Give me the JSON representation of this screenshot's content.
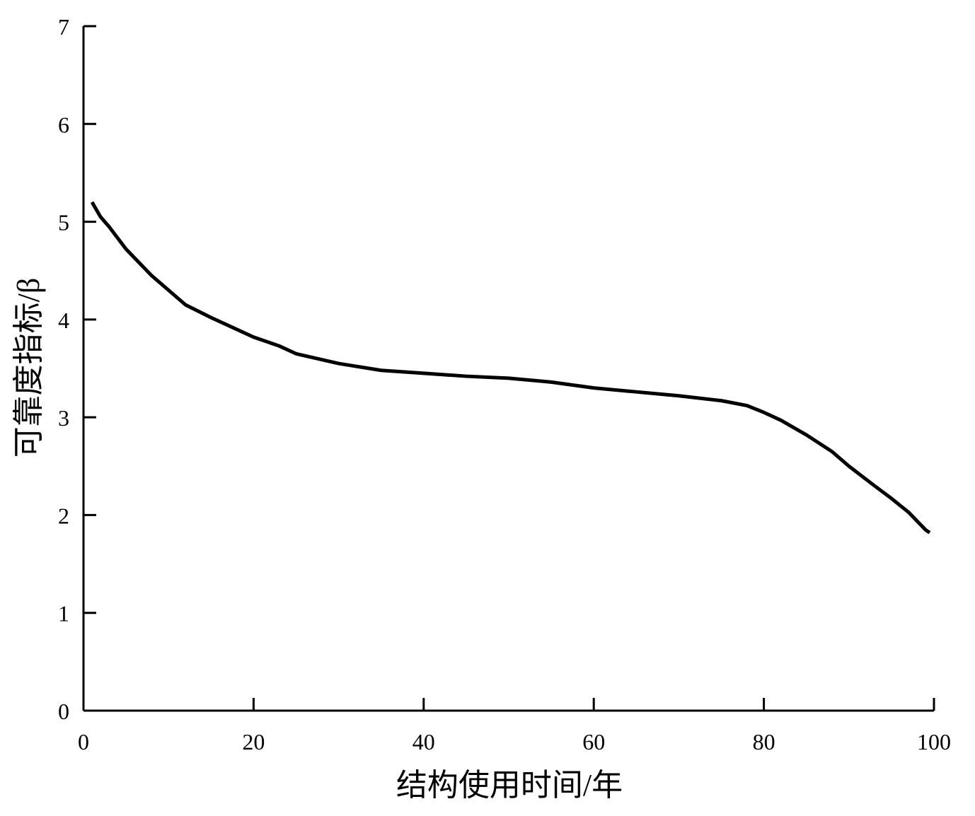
{
  "chart_data": {
    "type": "line",
    "xlabel": "结构使用时间/年",
    "ylabel": "可靠度指标/β",
    "x": [
      1,
      2,
      3,
      5,
      8,
      10,
      12,
      15,
      18,
      20,
      23,
      25,
      28,
      30,
      35,
      40,
      45,
      50,
      55,
      60,
      65,
      70,
      75,
      78,
      80,
      82,
      85,
      88,
      90,
      93,
      95,
      97,
      99,
      99.5
    ],
    "series": [
      {
        "name": "β",
        "color": "#000000",
        "values": [
          5.2,
          5.05,
          4.95,
          4.72,
          4.45,
          4.3,
          4.15,
          4.02,
          3.9,
          3.82,
          3.73,
          3.65,
          3.59,
          3.55,
          3.48,
          3.45,
          3.42,
          3.4,
          3.36,
          3.3,
          3.26,
          3.22,
          3.17,
          3.12,
          3.05,
          2.97,
          2.82,
          2.65,
          2.5,
          2.3,
          2.17,
          2.03,
          1.85,
          1.82
        ]
      }
    ],
    "xlim": [
      0,
      100
    ],
    "ylim": [
      0,
      7
    ],
    "xticks": [
      0,
      20,
      40,
      60,
      80,
      100
    ],
    "yticks": [
      0,
      1,
      2,
      3,
      4,
      5,
      6,
      7
    ]
  }
}
